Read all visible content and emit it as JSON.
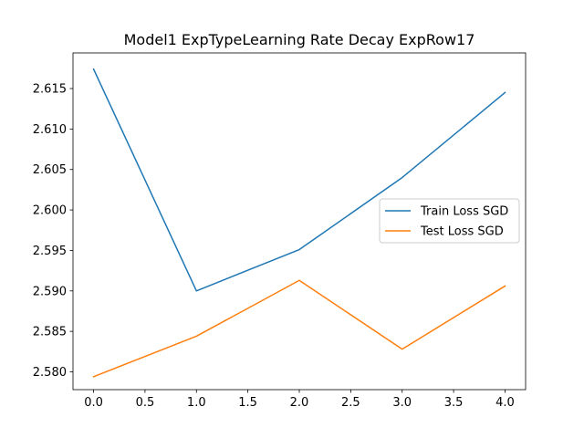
{
  "chart_data": {
    "type": "line",
    "title": "Model1 ExpTypeLearning Rate Decay ExpRow17",
    "xlabel": "",
    "ylabel": "",
    "x": [
      0,
      1,
      2,
      3,
      4
    ],
    "xlim": [
      -0.2,
      4.2
    ],
    "ylim": [
      2.5778,
      2.6194
    ],
    "xticks": [
      0,
      0.5,
      1,
      1.5,
      2,
      2.5,
      3,
      3.5,
      4
    ],
    "xtick_labels": [
      "0.0",
      "0.5",
      "1.0",
      "1.5",
      "2.0",
      "2.5",
      "3.0",
      "3.5",
      "4.0"
    ],
    "yticks": [
      2.58,
      2.585,
      2.59,
      2.595,
      2.6,
      2.605,
      2.61,
      2.615
    ],
    "ytick_labels": [
      "2.580",
      "2.585",
      "2.590",
      "2.595",
      "2.600",
      "2.605",
      "2.610",
      "2.615"
    ],
    "grid": false,
    "legend_position": "center-right",
    "series": [
      {
        "name": "Train Loss SGD",
        "color": "#1f77b4",
        "values": [
          2.6174,
          2.59,
          2.5951,
          2.604,
          2.6145
        ]
      },
      {
        "name": "Test Loss SGD",
        "color": "#ff7f0e",
        "values": [
          2.5794,
          2.5844,
          2.5913,
          2.5828,
          2.5906
        ]
      }
    ]
  }
}
